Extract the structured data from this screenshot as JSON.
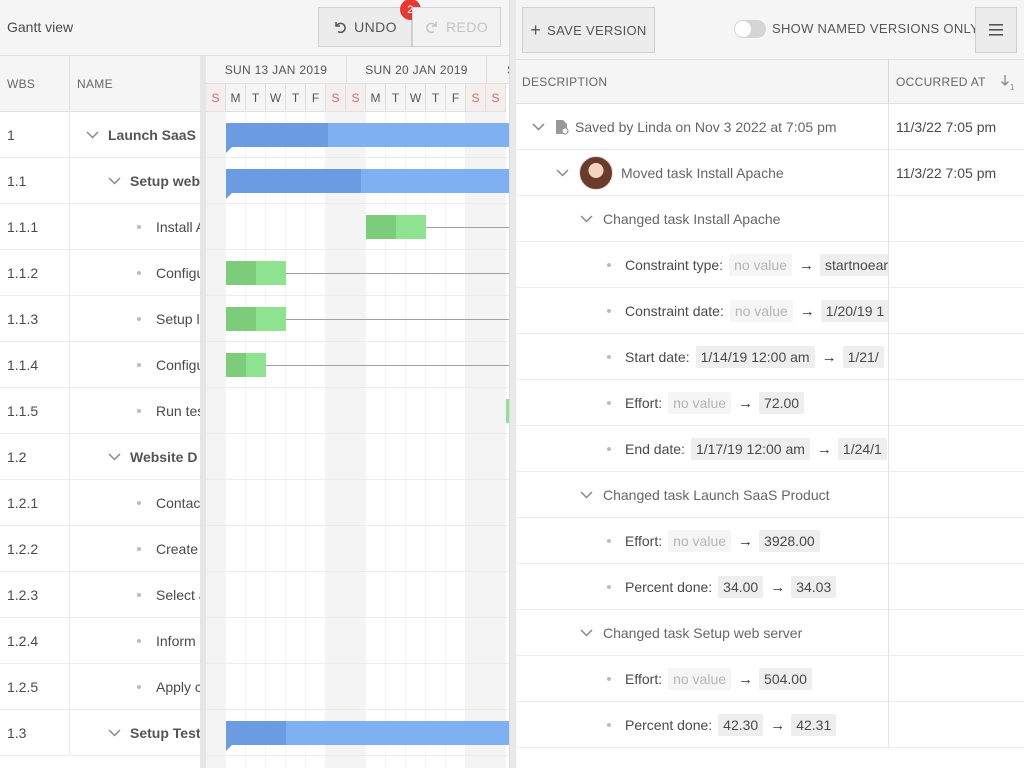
{
  "left_toolbar": {
    "title": "Gantt view",
    "undo_label": "UNDO",
    "undo_badge": "2",
    "redo_label": "REDO"
  },
  "grid": {
    "headers": {
      "wbs": "WBS",
      "name": "NAME"
    },
    "rows": [
      {
        "wbs": "1",
        "name": "Launch SaaS P",
        "level": 0,
        "type": "parent"
      },
      {
        "wbs": "1.1",
        "name": "Setup web",
        "level": 1,
        "type": "parent"
      },
      {
        "wbs": "1.1.1",
        "name": "Install A",
        "level": 2,
        "type": "leaf"
      },
      {
        "wbs": "1.1.2",
        "name": "Configu",
        "level": 2,
        "type": "leaf"
      },
      {
        "wbs": "1.1.3",
        "name": "Setup l",
        "level": 2,
        "type": "leaf"
      },
      {
        "wbs": "1.1.4",
        "name": "Configu",
        "level": 2,
        "type": "leaf"
      },
      {
        "wbs": "1.1.5",
        "name": "Run tes",
        "level": 2,
        "type": "leaf"
      },
      {
        "wbs": "1.2",
        "name": "Website D",
        "level": 1,
        "type": "parent"
      },
      {
        "wbs": "1.2.1",
        "name": "Contac",
        "level": 2,
        "type": "leaf"
      },
      {
        "wbs": "1.2.2",
        "name": "Create",
        "level": 2,
        "type": "leaf"
      },
      {
        "wbs": "1.2.3",
        "name": "Select a",
        "level": 2,
        "type": "leaf"
      },
      {
        "wbs": "1.2.4",
        "name": "Inform",
        "level": 2,
        "type": "leaf"
      },
      {
        "wbs": "1.2.5",
        "name": "Apply c",
        "level": 2,
        "type": "leaf"
      },
      {
        "wbs": "1.3",
        "name": "Setup Test",
        "level": 1,
        "type": "parent"
      }
    ]
  },
  "timeline": {
    "weeks": [
      "SUN 13 JAN 2019",
      "SUN 20 JAN 2019",
      "S"
    ],
    "days": [
      "S",
      "M",
      "T",
      "W",
      "T",
      "F",
      "S",
      "S",
      "M",
      "T",
      "W",
      "T",
      "F",
      "S",
      "S"
    ]
  },
  "history": {
    "save_version_label": "SAVE VERSION",
    "toggle_label": "SHOW NAMED VERSIONS ONLY",
    "toggle_on": false,
    "headers": {
      "description": "DESCRIPTION",
      "occurred_at": "OCCURRED AT",
      "sort_index": "1"
    },
    "rows": [
      {
        "kind": "version",
        "text": "Saved by Linda on Nov 3 2022 at 7:05 pm",
        "occurred": "11/3/22 7:05 pm"
      },
      {
        "kind": "transaction",
        "text": "Moved task Install Apache",
        "occurred": "11/3/22 7:05 pm"
      },
      {
        "kind": "action",
        "text": "Changed task Install Apache"
      },
      {
        "kind": "change",
        "label": "Constraint type:",
        "from": "no value",
        "to": "startnoearl"
      },
      {
        "kind": "change",
        "label": "Constraint date:",
        "from": "no value",
        "to": "1/20/19 1"
      },
      {
        "kind": "change",
        "label": "Start date:",
        "from": "1/14/19 12:00 am",
        "to": "1/21/"
      },
      {
        "kind": "change",
        "label": "Effort:",
        "from": "no value",
        "to": "72.00"
      },
      {
        "kind": "change",
        "label": "End date:",
        "from": "1/17/19 12:00 am",
        "to": "1/24/1"
      },
      {
        "kind": "action",
        "text": "Changed task Launch SaaS Product"
      },
      {
        "kind": "change",
        "label": "Effort:",
        "from": "no value",
        "to": "3928.00"
      },
      {
        "kind": "change",
        "label": "Percent done:",
        "from": "34.00",
        "to": "34.03"
      },
      {
        "kind": "action",
        "text": "Changed task Setup web server"
      },
      {
        "kind": "change",
        "label": "Effort:",
        "from": "no value",
        "to": "504.00"
      },
      {
        "kind": "change",
        "label": "Percent done:",
        "from": "42.30",
        "to": "42.31"
      }
    ]
  },
  "colors": {
    "summary_bar": "#7fb0f2",
    "summary_done": "#6b9be0",
    "task_bar": "#8fe28f",
    "task_done": "#7ccc7c",
    "badge": "#e53935"
  }
}
